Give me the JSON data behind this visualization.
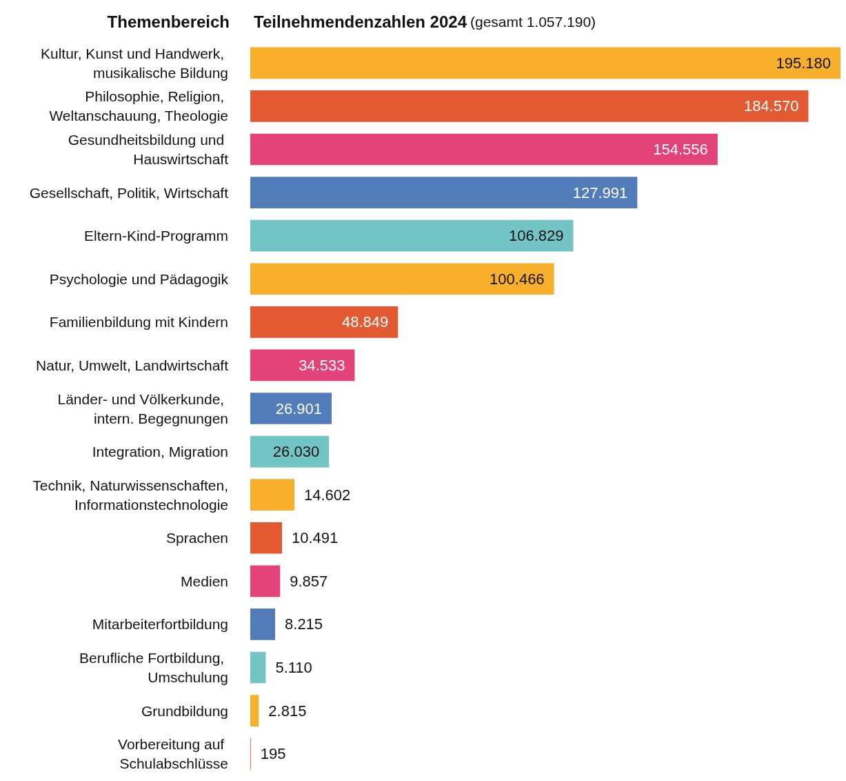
{
  "chart_data": {
    "type": "bar",
    "orientation": "horizontal",
    "title": "Teilnehmendenzahlen 2024",
    "subtitle": "(gesamt 1.057.190)",
    "ylabel": "Themenbereich",
    "categories": [
      "Kultur, Kunst und Handwerk, musikalische Bildung",
      "Philosophie, Religion, Weltanschauung, Theologie",
      "Gesundheitsbildung und Hauswirtschaft",
      "Gesellschaft, Politik, Wirtschaft",
      "Eltern-Kind-Programm",
      "Psychologie und Pädagogik",
      "Familienbildung mit Kindern",
      "Natur, Umwelt, Landwirtschaft",
      "Länder- und Völkerkunde, intern. Begegnungen",
      "Integration, Migration",
      "Technik, Naturwissenschaften, Informationstechnologie",
      "Sprachen",
      "Medien",
      "Mitarbeiterfortbildung",
      "Berufliche Fortbildung, Umschulung",
      "Grundbildung",
      "Vorbereitung auf Schulabschlüsse"
    ],
    "values": [
      195180,
      184570,
      154556,
      127991,
      106829,
      100466,
      48849,
      34533,
      26901,
      26030,
      14602,
      10491,
      9857,
      8215,
      5110,
      2815,
      195
    ],
    "colors": [
      "#f7af2c",
      "#e35a32",
      "#e4437a",
      "#517cb9",
      "#73c4c4",
      "#f7af2c",
      "#e35a32",
      "#e4437a",
      "#517cb9",
      "#73c4c4",
      "#f7af2c",
      "#e35a32",
      "#e4437a",
      "#517cb9",
      "#73c4c4",
      "#f7af2c",
      "#e35a32"
    ],
    "value_labels": [
      "195.180",
      "184.570",
      "154.556",
      "127.991",
      "106.829",
      "100.466",
      "48.849",
      "34.533",
      "26.901",
      "26.030",
      "14.602",
      "10.491",
      "9.857",
      "8.215",
      "5.110",
      "2.815",
      "195"
    ]
  }
}
